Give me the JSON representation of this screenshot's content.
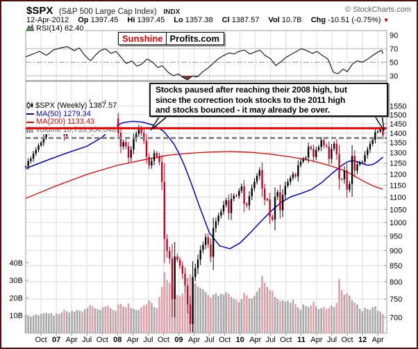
{
  "header": {
    "symbol": "$SPX",
    "name": "(S&P 500 Large Cap Index)",
    "exchange": "INDX",
    "copyright": "© StockCharts.com",
    "date": "12-Apr-2012",
    "quote": [
      [
        "Op",
        "1397.45"
      ],
      [
        "Hi",
        "1397.45"
      ],
      [
        "Lo",
        "1357.38"
      ],
      [
        "Cl",
        "1387.57"
      ],
      [
        "Vol",
        "10.7B"
      ],
      [
        "Chg",
        "-10.51 (-0.75%)"
      ]
    ],
    "chg_arrow": "▼"
  },
  "rsi_legend": {
    "label": "RSI(14)",
    "value": "62.40"
  },
  "price_legend": {
    "main": "$SPX (Weekly) 1387.57",
    "ma50": "MA(50) 1279.34",
    "ma200": "MA(200) 1133.43",
    "volume": "Volume 10,733,954,048"
  },
  "watermark": {
    "left": "Sunshine",
    "right": "Profits.com"
  },
  "annotation": {
    "lines": [
      "Stocks paused after reaching their 2008 high, but",
      "since the correction took stocks to the 2011 high",
      "and stocks bounced - it may already be over."
    ]
  },
  "colors": {
    "candle_up": "#000000",
    "candle_down": "#cc0022",
    "vol_up": "#a9a9a9",
    "vol_down": "#e3a0a9",
    "ma50": "#0000c8",
    "ma200": "#e80000",
    "grid": "#dcdcdc",
    "border": "#9a9a9a",
    "rsi_line": "#1a1a1a",
    "rsi_fill": "#8c3535",
    "resistance": "#ff0000",
    "dashed": "#8a8a8a"
  },
  "chart_data": {
    "type": "candlestick",
    "title": "$SPX S&P 500 Large Cap Index (Weekly) with RSI(14) and volume",
    "timeframe": "weekly, Jul 2006 - Apr 2012",
    "price_axis": {
      "scale": "log",
      "min": 660,
      "max": 1700,
      "ticks": [
        700,
        750,
        800,
        850,
        900,
        950,
        1000,
        1050,
        1100,
        1150,
        1200,
        1250,
        1300,
        1350,
        1400,
        1450,
        1500,
        1550
      ]
    },
    "volume_axis": {
      "unit": "B",
      "ticks": [
        10,
        20,
        30,
        40
      ]
    },
    "rsi_axis": {
      "ticks": [
        30,
        50,
        70,
        90
      ],
      "overbought": 70,
      "oversold": 30,
      "mid": 50
    },
    "x_axis": {
      "labels": [
        {
          "t": "Oct",
          "m": 3
        },
        {
          "t": "07",
          "m": 6,
          "b": 1
        },
        {
          "t": "Apr",
          "m": 9
        },
        {
          "t": "Jul",
          "m": 12
        },
        {
          "t": "Oct",
          "m": 15
        },
        {
          "t": "08",
          "m": 18,
          "b": 1
        },
        {
          "t": "Apr",
          "m": 21
        },
        {
          "t": "Jul",
          "m": 24
        },
        {
          "t": "Oct",
          "m": 27
        },
        {
          "t": "09",
          "m": 30,
          "b": 1
        },
        {
          "t": "Apr",
          "m": 33
        },
        {
          "t": "Jul",
          "m": 36
        },
        {
          "t": "Oct",
          "m": 39
        },
        {
          "t": "10",
          "m": 42,
          "b": 1
        },
        {
          "t": "Apr",
          "m": 45
        },
        {
          "t": "Jul",
          "m": 48
        },
        {
          "t": "Oct",
          "m": 51
        },
        {
          "t": "11",
          "m": 54,
          "b": 1
        },
        {
          "t": "Apr",
          "m": 57
        },
        {
          "t": "Jul",
          "m": 60
        },
        {
          "t": "Oct",
          "m": 63
        },
        {
          "t": "12",
          "m": 66,
          "b": 1
        },
        {
          "t": "Apr",
          "m": 69
        }
      ]
    },
    "resistance_line_price": 1424,
    "dashed_line_price": 1374,
    "candles": {
      "months_per_point": 0.5036,
      "closes": [
        1236,
        1260,
        1271,
        1296,
        1314,
        1336,
        1350,
        1378,
        1396,
        1401,
        1410,
        1418,
        1423,
        1430,
        1448,
        1387,
        1404,
        1421,
        1452,
        1482,
        1505,
        1522,
        1503,
        1533,
        1553,
        1459,
        1411,
        1441,
        1473,
        1526,
        1562,
        1508,
        1440,
        1481,
        1467,
        1478,
        1401,
        1330,
        1353,
        1331,
        1276,
        1315,
        1370,
        1396,
        1426,
        1400,
        1360,
        1280,
        1239,
        1260,
        1298,
        1283,
        1255,
        1165,
        940,
        899,
        873,
        750,
        880,
        869,
        850,
        825,
        789,
        735,
        683,
        815,
        842,
        870,
        902,
        919,
        946,
        921,
        879,
        979,
        1004,
        1026,
        1042,
        1068,
        1087,
        1036,
        1093,
        1106,
        1105,
        1126,
        1145,
        1073,
        1066,
        1104,
        1138,
        1166,
        1192,
        1217,
        1136,
        1089,
        1091,
        1022,
        1011,
        1102,
        1121,
        1047,
        1109,
        1148,
        1165,
        1183,
        1199,
        1189,
        1240,
        1257,
        1271,
        1276,
        1329,
        1319,
        1279,
        1313,
        1328,
        1363,
        1337,
        1331,
        1270,
        1320,
        1345,
        1292,
        1178,
        1176,
        1216,
        1131,
        1155,
        1285,
        1215,
        1244,
        1255,
        1257,
        1289,
        1316,
        1344,
        1365,
        1404,
        1408,
        1422,
        1387.57
      ],
      "volumes_billions": [
        10.2,
        9.6,
        9.4,
        9.9,
        10.6,
        10.1,
        10.9,
        11.2,
        11.6,
        11.1,
        11.3,
        9.8,
        11.2,
        10.6,
        11.7,
        13.2,
        12.4,
        11.6,
        12.6,
        12.1,
        13.1,
        12.7,
        12.2,
        13.6,
        14.2,
        15.8,
        15.2,
        14.1,
        13.6,
        13.1,
        14.6,
        15.1,
        15.6,
        14.1,
        13.2,
        12.6,
        16.2,
        16.6,
        15.1,
        14.6,
        16.8,
        14.2,
        13.8,
        13.2,
        13.1,
        14.6,
        15.8,
        16.4,
        18.6,
        17.2,
        14.8,
        14.2,
        20.4,
        26.2,
        34.6,
        30.2,
        28.4,
        27.1,
        24.2,
        21.6,
        20.8,
        22.4,
        23.6,
        26.2,
        33.4,
        30.8,
        28.2,
        26.4,
        25.6,
        24.8,
        23.4,
        21.6,
        20.2,
        21.8,
        22.6,
        21.2,
        22.4,
        21.8,
        23.2,
        22.4,
        20.6,
        19.4,
        18.8,
        17.6,
        19.2,
        22.8,
        21.4,
        19.6,
        19.8,
        21.2,
        23.6,
        25.8,
        32.4,
        28.6,
        26.2,
        24.4,
        23.8,
        20.6,
        19.4,
        18.2,
        18.6,
        17.8,
        18.4,
        17.2,
        18.8,
        16.4,
        14.6,
        13.2,
        16.2,
        15.4,
        14.8,
        15.6,
        17.8,
        15.2,
        13.6,
        14.2,
        14.8,
        13.6,
        14.2,
        15.6,
        14.8,
        17.2,
        30.6,
        24.4,
        21.8,
        22.6,
        21.2,
        18.6,
        17.4,
        16.2,
        13.8,
        12.4,
        14.2,
        13.6,
        13.2,
        14.6,
        15.2,
        12.8,
        12.2,
        10.7
      ]
    },
    "ma50": [
      [
        0,
        1225
      ],
      [
        4,
        1262
      ],
      [
        8,
        1298
      ],
      [
        12,
        1332
      ],
      [
        15,
        1378
      ],
      [
        17,
        1428
      ],
      [
        19,
        1455
      ],
      [
        21,
        1463
      ],
      [
        23,
        1458
      ],
      [
        25,
        1442
      ],
      [
        27,
        1410
      ],
      [
        28,
        1378
      ],
      [
        29,
        1345
      ],
      [
        30,
        1298
      ],
      [
        31,
        1245
      ],
      [
        32,
        1185
      ],
      [
        33,
        1125
      ],
      [
        34,
        1065
      ],
      [
        35,
        1012
      ],
      [
        36,
        962
      ],
      [
        38,
        916
      ],
      [
        40,
        906
      ],
      [
        42,
        926
      ],
      [
        44,
        962
      ],
      [
        46,
        1002
      ],
      [
        48,
        1042
      ],
      [
        50,
        1078
      ],
      [
        52,
        1102
      ],
      [
        54,
        1116
      ],
      [
        56,
        1132
      ],
      [
        58,
        1162
      ],
      [
        60,
        1202
      ],
      [
        62,
        1240
      ],
      [
        63,
        1256
      ],
      [
        64,
        1262
      ],
      [
        65,
        1257
      ],
      [
        66,
        1247
      ],
      [
        67,
        1240
      ],
      [
        68,
        1243
      ],
      [
        69,
        1258
      ],
      [
        70,
        1279
      ]
    ],
    "ma200": [
      [
        0,
        1095
      ],
      [
        6,
        1148
      ],
      [
        12,
        1198
      ],
      [
        18,
        1240
      ],
      [
        24,
        1270
      ],
      [
        28,
        1288
      ],
      [
        32,
        1297
      ],
      [
        36,
        1303
      ],
      [
        40,
        1306
      ],
      [
        44,
        1302
      ],
      [
        48,
        1293
      ],
      [
        52,
        1279
      ],
      [
        55,
        1267
      ],
      [
        58,
        1249
      ],
      [
        60,
        1235
      ],
      [
        62,
        1219
      ],
      [
        64,
        1197
      ],
      [
        66,
        1170
      ],
      [
        68,
        1148
      ],
      [
        70,
        1133
      ]
    ],
    "rsi": {
      "period": 14,
      "current": 62.4,
      "points": [
        [
          0,
          58
        ],
        [
          1.4,
          62
        ],
        [
          2.7,
          66
        ],
        [
          4.1,
          60
        ],
        [
          5.4,
          68
        ],
        [
          6.8,
          71
        ],
        [
          8.2,
          73
        ],
        [
          9.5,
          67
        ],
        [
          10.5,
          71
        ],
        [
          11.6,
          60
        ],
        [
          12.7,
          52
        ],
        [
          13.6,
          60
        ],
        [
          14.6,
          67
        ],
        [
          15.6,
          70
        ],
        [
          16.7,
          63
        ],
        [
          17.7,
          66
        ],
        [
          18.6,
          58
        ],
        [
          19.7,
          48
        ],
        [
          20.8,
          52
        ],
        [
          21.8,
          44
        ],
        [
          22.7,
          47
        ],
        [
          23.8,
          55
        ],
        [
          24.9,
          50
        ],
        [
          25.9,
          42
        ],
        [
          26.8,
          45
        ],
        [
          27.9,
          35
        ],
        [
          29,
          30
        ],
        [
          29.9,
          33
        ],
        [
          30.9,
          27
        ],
        [
          31.7,
          24
        ],
        [
          32.7,
          30
        ],
        [
          33.6,
          28
        ],
        [
          34.7,
          36
        ],
        [
          35.8,
          42
        ],
        [
          36.7,
          48
        ],
        [
          37.7,
          55
        ],
        [
          38.8,
          60
        ],
        [
          39.9,
          64
        ],
        [
          40.8,
          62
        ],
        [
          41.8,
          66
        ],
        [
          42.9,
          68
        ],
        [
          43.9,
          62
        ],
        [
          44.9,
          65
        ],
        [
          45.9,
          68
        ],
        [
          46.9,
          60
        ],
        [
          48,
          55
        ],
        [
          49,
          45
        ],
        [
          49.9,
          50
        ],
        [
          51,
          57
        ],
        [
          52.1,
          62
        ],
        [
          53.1,
          66
        ],
        [
          54,
          70
        ],
        [
          55.1,
          67
        ],
        [
          56.2,
          63
        ],
        [
          57.1,
          66
        ],
        [
          58.1,
          60
        ],
        [
          59.2,
          55
        ],
        [
          60.3,
          35
        ],
        [
          61.2,
          33
        ],
        [
          62.2,
          40
        ],
        [
          63,
          36
        ],
        [
          64,
          47
        ],
        [
          64.9,
          52
        ],
        [
          66,
          50
        ],
        [
          67.1,
          55
        ],
        [
          68,
          60
        ],
        [
          69,
          65
        ],
        [
          69.8,
          68
        ],
        [
          70,
          62.4
        ]
      ]
    }
  }
}
